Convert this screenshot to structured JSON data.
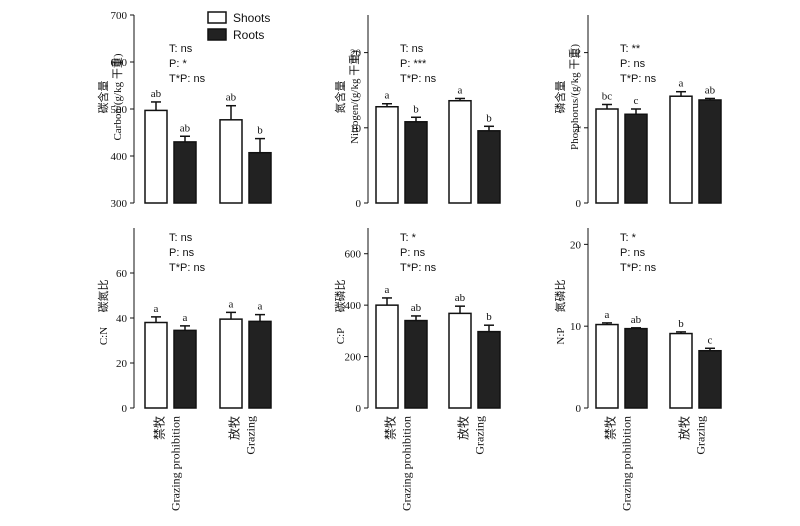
{
  "legend": {
    "shoots": "Shoots",
    "roots": "Roots"
  },
  "x_categories": [
    {
      "zh": "禁牧",
      "en": "Grazing prohibition"
    },
    {
      "zh": "放牧",
      "en": "Grazing"
    }
  ],
  "series": [
    {
      "name": "Shoots",
      "fill": "#ffffff",
      "stroke": "#111111"
    },
    {
      "name": "Roots",
      "fill": "#222222",
      "stroke": "#111111"
    }
  ],
  "chart_data": [
    {
      "type": "bar",
      "ylabel_zh": "碳含量",
      "ylabel_en": "Carbon/(g/kg 干重)",
      "ylim": [
        300,
        700
      ],
      "yticks": [
        300,
        400,
        500,
        600,
        700
      ],
      "categories": [
        "禁牧 Grazing prohibition",
        "放牧 Grazing"
      ],
      "series": [
        {
          "name": "Shoots",
          "values": [
            497,
            477
          ],
          "errors": [
            18,
            30
          ],
          "letters": [
            "ab",
            "ab"
          ]
        },
        {
          "name": "Roots",
          "values": [
            430,
            407
          ],
          "errors": [
            12,
            30
          ],
          "letters": [
            "ab",
            "b"
          ]
        }
      ],
      "stats": [
        "T: ns",
        "P: *",
        "T*P: ns"
      ]
    },
    {
      "type": "bar",
      "ylabel_zh": "氮含量",
      "ylabel_en": "Nitrogen/(g/kg 干重)",
      "ylim": [
        0,
        25
      ],
      "yticks": [
        0,
        10,
        20
      ],
      "categories": [
        "禁牧 Grazing prohibition",
        "放牧 Grazing"
      ],
      "series": [
        {
          "name": "Shoots",
          "values": [
            12.8,
            13.6
          ],
          "errors": [
            0.4,
            0.3
          ],
          "letters": [
            "a",
            "a"
          ]
        },
        {
          "name": "Roots",
          "values": [
            10.8,
            9.6
          ],
          "errors": [
            0.6,
            0.6
          ],
          "letters": [
            "b",
            "b"
          ]
        }
      ],
      "stats": [
        "T: ns",
        "P: ***",
        "T*P: ns"
      ]
    },
    {
      "type": "bar",
      "ylabel_zh": "磷含量",
      "ylabel_en": "Phosphorus/(g/kg 干重)",
      "ylim": [
        0,
        2.5
      ],
      "yticks": [
        0,
        1,
        2
      ],
      "categories": [
        "禁牧 Grazing prohibition",
        "放牧 Grazing"
      ],
      "series": [
        {
          "name": "Shoots",
          "values": [
            1.25,
            1.42
          ],
          "errors": [
            0.06,
            0.06
          ],
          "letters": [
            "bc",
            "a"
          ]
        },
        {
          "name": "Roots",
          "values": [
            1.18,
            1.37
          ],
          "errors": [
            0.07,
            0.02
          ],
          "letters": [
            "c",
            "ab"
          ]
        }
      ],
      "stats": [
        "T: **",
        "P: ns",
        "T*P: ns"
      ]
    },
    {
      "type": "bar",
      "ylabel_zh": "碳氮比",
      "ylabel_en": "C:N",
      "ylim": [
        0,
        80
      ],
      "yticks": [
        0,
        20,
        40,
        60
      ],
      "categories": [
        "禁牧 Grazing prohibition",
        "放牧 Grazing"
      ],
      "series": [
        {
          "name": "Shoots",
          "values": [
            38,
            39.5
          ],
          "errors": [
            2.5,
            3.0
          ],
          "letters": [
            "a",
            "a"
          ]
        },
        {
          "name": "Roots",
          "values": [
            34.5,
            38.5
          ],
          "errors": [
            2.0,
            3.0
          ],
          "letters": [
            "a",
            "a"
          ]
        }
      ],
      "stats": [
        "T: ns",
        "P: ns",
        "T*P: ns"
      ]
    },
    {
      "type": "bar",
      "ylabel_zh": "碳磷比",
      "ylabel_en": "C:P",
      "ylim": [
        0,
        700
      ],
      "yticks": [
        0,
        200,
        400,
        600
      ],
      "categories": [
        "禁牧 Grazing prohibition",
        "放牧 Grazing"
      ],
      "series": [
        {
          "name": "Shoots",
          "values": [
            400,
            368
          ],
          "errors": [
            28,
            28
          ],
          "letters": [
            "a",
            "ab"
          ]
        },
        {
          "name": "Roots",
          "values": [
            340,
            297
          ],
          "errors": [
            18,
            25
          ],
          "letters": [
            "ab",
            "b"
          ]
        }
      ],
      "stats": [
        "T: *",
        "P: ns",
        "T*P: ns"
      ]
    },
    {
      "type": "bar",
      "ylabel_zh": "氮磷比",
      "ylabel_en": "N:P",
      "ylim": [
        0,
        22
      ],
      "yticks": [
        0,
        10,
        20
      ],
      "categories": [
        "禁牧 Grazing prohibition",
        "放牧 Grazing"
      ],
      "series": [
        {
          "name": "Shoots",
          "values": [
            10.2,
            9.1
          ],
          "errors": [
            0.2,
            0.2
          ],
          "letters": [
            "a",
            "b"
          ]
        },
        {
          "name": "Roots",
          "values": [
            9.7,
            7.0
          ],
          "errors": [
            0.1,
            0.3
          ],
          "letters": [
            "ab",
            "c"
          ]
        }
      ],
      "stats": [
        "T: *",
        "P: ns",
        "T*P: ns"
      ]
    }
  ]
}
